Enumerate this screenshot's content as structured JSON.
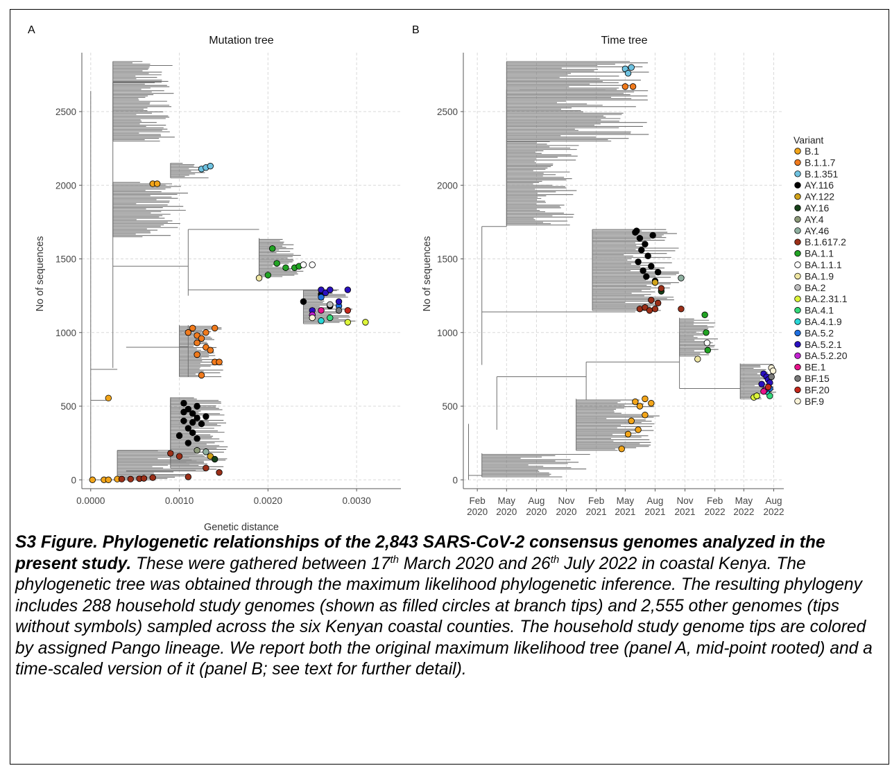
{
  "panels": [
    {
      "letter": "A",
      "title": "Mutation tree",
      "xlabel": "Genetic distance",
      "ylabel": "No of sequences",
      "xticks": [
        "0.0000",
        "0.0010",
        "0.0020",
        "0.0030"
      ],
      "yticks": [
        "0",
        "500",
        "1000",
        "1500",
        "2000",
        "2500"
      ]
    },
    {
      "letter": "B",
      "title": "Time tree",
      "xlabel": "",
      "ylabel": "No of sequences",
      "xticks": [
        [
          "Feb",
          "2020"
        ],
        [
          "May",
          "2020"
        ],
        [
          "Aug",
          "2020"
        ],
        [
          "Nov",
          "2020"
        ],
        [
          "Feb",
          "2021"
        ],
        [
          "May",
          "2021"
        ],
        [
          "Aug",
          "2021"
        ],
        [
          "Nov",
          "2021"
        ],
        [
          "Feb",
          "2022"
        ],
        [
          "May",
          "2022"
        ],
        [
          "Aug",
          "2022"
        ]
      ],
      "yticks": [
        "0",
        "500",
        "1000",
        "1500",
        "2000",
        "2500"
      ]
    }
  ],
  "chart_data": [
    {
      "type": "scatter",
      "title": "Mutation tree",
      "xlabel": "Genetic distance",
      "ylabel": "No of sequences",
      "xlim": [
        -0.0001,
        0.0035
      ],
      "ylim": [
        -60,
        2900
      ],
      "grid": true,
      "branch_color": "#6e6e6e",
      "tree_line_color": "#6e6e6e",
      "tips": [
        {
          "variant": "B.1",
          "x": 2e-05,
          "y": 0
        },
        {
          "variant": "B.1",
          "x": 0.00015,
          "y": 0
        },
        {
          "variant": "B.1",
          "x": 0.0002,
          "y": 0
        },
        {
          "variant": "B.1",
          "x": 0.0003,
          "y": 5
        },
        {
          "variant": "B.1",
          "x": 0.0002,
          "y": 555
        },
        {
          "variant": "B.1",
          "x": 0.0007,
          "y": 2010
        },
        {
          "variant": "B.1",
          "x": 0.00075,
          "y": 2010
        },
        {
          "variant": "B.1.617.2",
          "x": 0.00035,
          "y": 5
        },
        {
          "variant": "B.1.617.2",
          "x": 0.00045,
          "y": 5
        },
        {
          "variant": "B.1.617.2",
          "x": 0.00055,
          "y": 8
        },
        {
          "variant": "B.1.617.2",
          "x": 0.0006,
          "y": 10
        },
        {
          "variant": "B.1.617.2",
          "x": 0.0007,
          "y": 15
        },
        {
          "variant": "B.1.617.2",
          "x": 0.0009,
          "y": 180
        },
        {
          "variant": "B.1.617.2",
          "x": 0.001,
          "y": 160
        },
        {
          "variant": "B.1.617.2",
          "x": 0.0011,
          "y": 20
        },
        {
          "variant": "B.1.617.2",
          "x": 0.0013,
          "y": 80
        },
        {
          "variant": "B.1.617.2",
          "x": 0.00145,
          "y": 50
        },
        {
          "variant": "B.1.1.7",
          "x": 0.0011,
          "y": 1000
        },
        {
          "variant": "B.1.1.7",
          "x": 0.00115,
          "y": 1030
        },
        {
          "variant": "B.1.1.7",
          "x": 0.0012,
          "y": 980
        },
        {
          "variant": "B.1.1.7",
          "x": 0.00125,
          "y": 960
        },
        {
          "variant": "B.1.1.7",
          "x": 0.0013,
          "y": 1000
        },
        {
          "variant": "B.1.1.7",
          "x": 0.0012,
          "y": 930
        },
        {
          "variant": "B.1.1.7",
          "x": 0.0013,
          "y": 900
        },
        {
          "variant": "B.1.1.7",
          "x": 0.00135,
          "y": 880
        },
        {
          "variant": "B.1.1.7",
          "x": 0.0012,
          "y": 850
        },
        {
          "variant": "B.1.1.7",
          "x": 0.0014,
          "y": 800
        },
        {
          "variant": "B.1.1.7",
          "x": 0.00145,
          "y": 800
        },
        {
          "variant": "B.1.1.7",
          "x": 0.00125,
          "y": 710
        },
        {
          "variant": "B.1.1.7",
          "x": 0.0014,
          "y": 1030
        },
        {
          "variant": "B.1.351",
          "x": 0.00125,
          "y": 2110
        },
        {
          "variant": "B.1.351",
          "x": 0.0013,
          "y": 2120
        },
        {
          "variant": "B.1.351",
          "x": 0.00135,
          "y": 2130
        },
        {
          "variant": "AY.116",
          "x": 0.00105,
          "y": 520
        },
        {
          "variant": "AY.116",
          "x": 0.0011,
          "y": 480
        },
        {
          "variant": "AY.116",
          "x": 0.00115,
          "y": 450
        },
        {
          "variant": "AY.116",
          "x": 0.0012,
          "y": 420
        },
        {
          "variant": "AY.116",
          "x": 0.00105,
          "y": 400
        },
        {
          "variant": "AY.116",
          "x": 0.00125,
          "y": 380
        },
        {
          "variant": "AY.116",
          "x": 0.0011,
          "y": 350
        },
        {
          "variant": "AY.116",
          "x": 0.00115,
          "y": 320
        },
        {
          "variant": "AY.116",
          "x": 0.001,
          "y": 300
        },
        {
          "variant": "AY.116",
          "x": 0.0012,
          "y": 280
        },
        {
          "variant": "AY.116",
          "x": 0.0011,
          "y": 250
        },
        {
          "variant": "AY.116",
          "x": 0.00105,
          "y": 460
        },
        {
          "variant": "AY.116",
          "x": 0.0013,
          "y": 430
        },
        {
          "variant": "AY.116",
          "x": 0.0012,
          "y": 500
        },
        {
          "variant": "AY.116",
          "x": 0.00115,
          "y": 390
        },
        {
          "variant": "AY.116",
          "x": 0.0024,
          "y": 1210
        },
        {
          "variant": "AY.116",
          "x": 0.0026,
          "y": 1260
        },
        {
          "variant": "AY.116",
          "x": 0.0027,
          "y": 1180
        },
        {
          "variant": "AY.122",
          "x": 0.00135,
          "y": 160
        },
        {
          "variant": "AY.16",
          "x": 0.0014,
          "y": 140
        },
        {
          "variant": "AY.4",
          "x": 0.0012,
          "y": 200
        },
        {
          "variant": "AY.46",
          "x": 0.0013,
          "y": 190
        },
        {
          "variant": "BA.1.1",
          "x": 0.00205,
          "y": 1570
        },
        {
          "variant": "BA.1.1",
          "x": 0.0021,
          "y": 1470
        },
        {
          "variant": "BA.1.1",
          "x": 0.0022,
          "y": 1440
        },
        {
          "variant": "BA.1.1",
          "x": 0.0023,
          "y": 1440
        },
        {
          "variant": "BA.1.1",
          "x": 0.00235,
          "y": 1450
        },
        {
          "variant": "BA.1.1",
          "x": 0.002,
          "y": 1390
        },
        {
          "variant": "BA.1.1.1",
          "x": 0.0024,
          "y": 1460
        },
        {
          "variant": "BA.1.1.1",
          "x": 0.0025,
          "y": 1460
        },
        {
          "variant": "BA.1.9",
          "x": 0.0019,
          "y": 1370
        },
        {
          "variant": "BA.2",
          "x": 0.0027,
          "y": 1190
        },
        {
          "variant": "BA.2.31.1",
          "x": 0.0029,
          "y": 1070
        },
        {
          "variant": "BA.2.31.1",
          "x": 0.0031,
          "y": 1070
        },
        {
          "variant": "BA.4.1",
          "x": 0.0027,
          "y": 1100
        },
        {
          "variant": "BA.4.1.9",
          "x": 0.0026,
          "y": 1080
        },
        {
          "variant": "BA.5.2",
          "x": 0.0026,
          "y": 1240
        },
        {
          "variant": "BA.5.2",
          "x": 0.0028,
          "y": 1180
        },
        {
          "variant": "BA.5.2.1",
          "x": 0.0026,
          "y": 1290
        },
        {
          "variant": "BA.5.2.1",
          "x": 0.00265,
          "y": 1270
        },
        {
          "variant": "BA.5.2.1",
          "x": 0.0027,
          "y": 1290
        },
        {
          "variant": "BA.5.2.1",
          "x": 0.0029,
          "y": 1290
        },
        {
          "variant": "BA.5.2.1",
          "x": 0.0025,
          "y": 1150
        },
        {
          "variant": "BA.5.2.1",
          "x": 0.0028,
          "y": 1210
        },
        {
          "variant": "BA.5.2.20",
          "x": 0.0025,
          "y": 1120
        },
        {
          "variant": "BE.1",
          "x": 0.0026,
          "y": 1150
        },
        {
          "variant": "BF.15",
          "x": 0.0028,
          "y": 1150
        },
        {
          "variant": "BF.20",
          "x": 0.0029,
          "y": 1150
        },
        {
          "variant": "BF.9",
          "x": 0.0025,
          "y": 1100
        }
      ]
    },
    {
      "type": "scatter",
      "title": "Time tree",
      "xlabel": "",
      "ylabel": "No of sequences",
      "xlim": [
        "2019-12-20",
        "2022-09-01"
      ],
      "ylim": [
        -60,
        2900
      ],
      "grid": true,
      "branch_color": "#6e6e6e",
      "tips": [
        {
          "variant": "B.1.351",
          "date": "2021-05-01",
          "y": 2790
        },
        {
          "variant": "B.1.351",
          "date": "2021-05-10",
          "y": 2760
        },
        {
          "variant": "B.1.351",
          "date": "2021-05-20",
          "y": 2800
        },
        {
          "variant": "B.1.1.7",
          "date": "2021-05-01",
          "y": 2670
        },
        {
          "variant": "B.1.1.7",
          "date": "2021-05-25",
          "y": 2670
        },
        {
          "variant": "AY.116",
          "date": "2021-06-01",
          "y": 1680
        },
        {
          "variant": "AY.116",
          "date": "2021-06-15",
          "y": 1640
        },
        {
          "variant": "AY.116",
          "date": "2021-07-01",
          "y": 1600
        },
        {
          "variant": "AY.116",
          "date": "2021-06-20",
          "y": 1560
        },
        {
          "variant": "AY.116",
          "date": "2021-07-10",
          "y": 1520
        },
        {
          "variant": "AY.116",
          "date": "2021-06-10",
          "y": 1480
        },
        {
          "variant": "AY.116",
          "date": "2021-07-20",
          "y": 1450
        },
        {
          "variant": "AY.116",
          "date": "2021-06-25",
          "y": 1420
        },
        {
          "variant": "AY.116",
          "date": "2021-07-05",
          "y": 1380
        },
        {
          "variant": "AY.116",
          "date": "2021-08-01",
          "y": 1350
        },
        {
          "variant": "AY.116",
          "date": "2021-06-05",
          "y": 1690
        },
        {
          "variant": "AY.116",
          "date": "2021-07-25",
          "y": 1660
        },
        {
          "variant": "AY.116",
          "date": "2021-08-10",
          "y": 1410
        },
        {
          "variant": "AY.122",
          "date": "2021-08-01",
          "y": 1340
        },
        {
          "variant": "AY.16",
          "date": "2021-08-20",
          "y": 1280
        },
        {
          "variant": "AY.46",
          "date": "2021-10-20",
          "y": 1370
        },
        {
          "variant": "B.1.617.2",
          "date": "2021-06-15",
          "y": 1160
        },
        {
          "variant": "B.1.617.2",
          "date": "2021-07-01",
          "y": 1170
        },
        {
          "variant": "B.1.617.2",
          "date": "2021-07-15",
          "y": 1150
        },
        {
          "variant": "B.1.617.2",
          "date": "2021-08-01",
          "y": 1160
        },
        {
          "variant": "B.1.617.2",
          "date": "2021-08-10",
          "y": 1200
        },
        {
          "variant": "B.1.617.2",
          "date": "2021-07-20",
          "y": 1220
        },
        {
          "variant": "B.1.617.2",
          "date": "2021-08-20",
          "y": 1300
        },
        {
          "variant": "B.1.617.2",
          "date": "2021-10-20",
          "y": 1160
        },
        {
          "variant": "BA.1.1",
          "date": "2022-01-01",
          "y": 1120
        },
        {
          "variant": "BA.1.1",
          "date": "2022-01-05",
          "y": 1000
        },
        {
          "variant": "BA.1.1",
          "date": "2022-01-10",
          "y": 880
        },
        {
          "variant": "BA.1.1.1",
          "date": "2022-01-08",
          "y": 930
        },
        {
          "variant": "BA.1.9",
          "date": "2021-12-10",
          "y": 820
        },
        {
          "variant": "B.1",
          "date": "2021-06-01",
          "y": 530
        },
        {
          "variant": "B.1",
          "date": "2021-06-15",
          "y": 500
        },
        {
          "variant": "B.1",
          "date": "2021-07-01",
          "y": 440
        },
        {
          "variant": "B.1",
          "date": "2021-05-20",
          "y": 400
        },
        {
          "variant": "B.1",
          "date": "2021-06-10",
          "y": 340
        },
        {
          "variant": "B.1",
          "date": "2021-05-10",
          "y": 310
        },
        {
          "variant": "B.1",
          "date": "2021-04-20",
          "y": 210
        },
        {
          "variant": "B.1",
          "date": "2021-07-20",
          "y": 520
        },
        {
          "variant": "B.1",
          "date": "2021-07-01",
          "y": 550
        },
        {
          "variant": "BA.2.31.1",
          "date": "2022-06-01",
          "y": 560
        },
        {
          "variant": "BA.2.31.1",
          "date": "2022-06-10",
          "y": 570
        },
        {
          "variant": "BA.4.1",
          "date": "2022-07-20",
          "y": 570
        },
        {
          "variant": "BA.4.1.9",
          "date": "2022-07-10",
          "y": 600
        },
        {
          "variant": "BA.5.2",
          "date": "2022-07-20",
          "y": 620
        },
        {
          "variant": "BA.5.2.1",
          "date": "2022-07-01",
          "y": 720
        },
        {
          "variant": "BA.5.2.1",
          "date": "2022-07-10",
          "y": 700
        },
        {
          "variant": "BA.5.2.1",
          "date": "2022-07-15",
          "y": 680
        },
        {
          "variant": "BA.5.2.1",
          "date": "2022-07-20",
          "y": 660
        },
        {
          "variant": "BA.5.2.1",
          "date": "2022-06-25",
          "y": 650
        },
        {
          "variant": "BA.5.2.20",
          "date": "2022-07-05",
          "y": 610
        },
        {
          "variant": "BE.1",
          "date": "2022-07-01",
          "y": 600
        },
        {
          "variant": "BF.15",
          "date": "2022-07-25",
          "y": 700
        },
        {
          "variant": "BF.20",
          "date": "2022-07-15",
          "y": 630
        },
        {
          "variant": "BF.9",
          "date": "2022-07-25",
          "y": 760
        },
        {
          "variant": "BF.9",
          "date": "2022-07-30",
          "y": 740
        }
      ]
    }
  ],
  "legend": {
    "title": "Variant",
    "items": [
      {
        "label": "B.1",
        "color": "#F2A51A"
      },
      {
        "label": "B.1.1.7",
        "color": "#F07A1C"
      },
      {
        "label": "B.1.351",
        "color": "#6FC2E0"
      },
      {
        "label": "AY.116",
        "color": "#000000"
      },
      {
        "label": "AY.122",
        "color": "#D1A21A"
      },
      {
        "label": "AY.16",
        "color": "#17421A"
      },
      {
        "label": "AY.4",
        "color": "#8D9A7A"
      },
      {
        "label": "AY.46",
        "color": "#8FB0A0"
      },
      {
        "label": "B.1.617.2",
        "color": "#9B2F18"
      },
      {
        "label": "BA.1.1",
        "color": "#22A324"
      },
      {
        "label": "BA.1.1.1",
        "color": "#FFFFFF"
      },
      {
        "label": "BA.1.9",
        "color": "#EFE6A2"
      },
      {
        "label": "BA.2",
        "color": "#BEBEBE"
      },
      {
        "label": "BA.2.31.1",
        "color": "#DDF53A"
      },
      {
        "label": "BA.4.1",
        "color": "#35D87A"
      },
      {
        "label": "BA.4.1.9",
        "color": "#28D7D7"
      },
      {
        "label": "BA.5.2",
        "color": "#1E6FE0"
      },
      {
        "label": "BA.5.2.1",
        "color": "#2A10C0"
      },
      {
        "label": "BA.5.2.20",
        "color": "#C222D0"
      },
      {
        "label": "BE.1",
        "color": "#E8138A"
      },
      {
        "label": "BF.15",
        "color": "#7A7A7A"
      },
      {
        "label": "BF.20",
        "color": "#C4281C"
      },
      {
        "label": "BF.9",
        "color": "#FAF3D8"
      }
    ]
  },
  "caption": {
    "bold": "S3 Figure. Phylogenetic relationships of the 2,843 SARS-CoV-2 consensus genomes analyzed in the present study.",
    "part1": " These were gathered between 17",
    "sup1": "th",
    "part2": " March 2020 and 26",
    "sup2": "th",
    "part3": " July 2022 in coastal Kenya. The phylogenetic tree was obtained through the maximum likelihood phylogenetic inference. The resulting phylogeny includes 288 household study genomes (shown as filled circles at branch tips) and 2,555 other genomes (tips without symbols) sampled across the six Kenyan coastal counties. The household study genome tips are colored by assigned Pango lineage. We report both the original maximum likelihood tree (panel A, mid-point rooted) and a time-scaled version of it (panel B; see text for further detail)."
  }
}
